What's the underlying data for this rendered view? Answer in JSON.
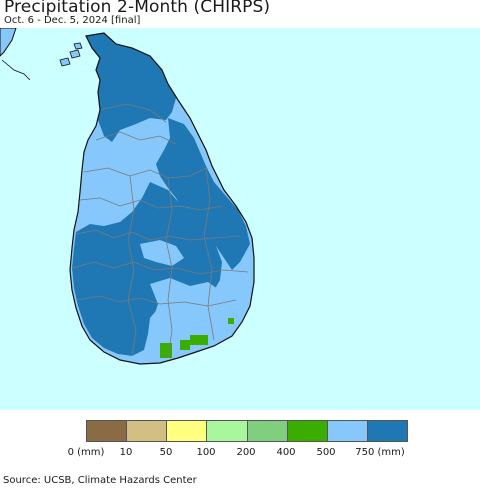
{
  "header": {
    "title": "Precipitation 2-Month (CHIRPS)",
    "subtitle": "Oct. 6 - Dec. 5, 2024 [final]"
  },
  "map": {
    "ocean_color": "#ccffff",
    "boundary_color": "#7a7a7a",
    "coast_color": "#111111"
  },
  "legend": {
    "colors": [
      "#8b6b43",
      "#d2bf84",
      "#ffff80",
      "#a8f79d",
      "#7fcf7f",
      "#3aad00",
      "#86c8fb",
      "#1f78b4"
    ],
    "labels": [
      "0 (mm)",
      "10",
      "50",
      "100",
      "200",
      "400",
      "500",
      "750 (mm)"
    ]
  },
  "footer": {
    "source": "Source: UCSB, Climate Hazards Center"
  }
}
